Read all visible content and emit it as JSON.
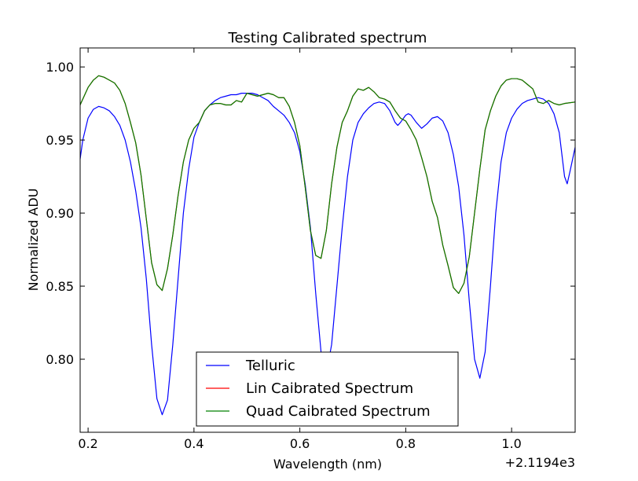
{
  "chart_data": {
    "type": "line",
    "title": "Testing Calibrated spectrum",
    "xlabel": "Wavelength (nm)",
    "ylabel": "Normalized ADU",
    "x_offset_text": "+2.1194e3",
    "xlim": [
      0.185,
      1.12
    ],
    "ylim": [
      0.75,
      1.013
    ],
    "xticks": [
      0.2,
      0.4,
      0.6,
      0.8,
      1.0
    ],
    "xtick_labels": [
      "0.2",
      "0.4",
      "0.6",
      "0.8",
      "1.0"
    ],
    "yticks": [
      0.8,
      0.85,
      0.9,
      0.95,
      1.0
    ],
    "ytick_labels": [
      "0.80",
      "0.85",
      "0.90",
      "0.95",
      "1.00"
    ],
    "grid": false,
    "legend_position": "lower-center",
    "series": [
      {
        "name": "Telluric",
        "color": "#0000ff",
        "points": [
          [
            0.185,
            0.937
          ],
          [
            0.19,
            0.95
          ],
          [
            0.2,
            0.965
          ],
          [
            0.21,
            0.971
          ],
          [
            0.22,
            0.973
          ],
          [
            0.23,
            0.972
          ],
          [
            0.24,
            0.97
          ],
          [
            0.25,
            0.966
          ],
          [
            0.26,
            0.96
          ],
          [
            0.27,
            0.95
          ],
          [
            0.28,
            0.935
          ],
          [
            0.29,
            0.915
          ],
          [
            0.3,
            0.89
          ],
          [
            0.31,
            0.855
          ],
          [
            0.32,
            0.81
          ],
          [
            0.33,
            0.773
          ],
          [
            0.34,
            0.762
          ],
          [
            0.35,
            0.772
          ],
          [
            0.36,
            0.81
          ],
          [
            0.37,
            0.855
          ],
          [
            0.38,
            0.9
          ],
          [
            0.39,
            0.93
          ],
          [
            0.4,
            0.952
          ],
          [
            0.41,
            0.962
          ],
          [
            0.42,
            0.97
          ],
          [
            0.43,
            0.974
          ],
          [
            0.44,
            0.977
          ],
          [
            0.45,
            0.979
          ],
          [
            0.46,
            0.98
          ],
          [
            0.47,
            0.981
          ],
          [
            0.48,
            0.981
          ],
          [
            0.49,
            0.982
          ],
          [
            0.5,
            0.982
          ],
          [
            0.51,
            0.982
          ],
          [
            0.52,
            0.981
          ],
          [
            0.53,
            0.979
          ],
          [
            0.54,
            0.977
          ],
          [
            0.55,
            0.973
          ],
          [
            0.56,
            0.97
          ],
          [
            0.57,
            0.967
          ],
          [
            0.58,
            0.962
          ],
          [
            0.59,
            0.955
          ],
          [
            0.6,
            0.942
          ],
          [
            0.61,
            0.92
          ],
          [
            0.62,
            0.89
          ],
          [
            0.63,
            0.845
          ],
          [
            0.64,
            0.805
          ],
          [
            0.65,
            0.79
          ],
          [
            0.66,
            0.81
          ],
          [
            0.67,
            0.85
          ],
          [
            0.68,
            0.89
          ],
          [
            0.69,
            0.925
          ],
          [
            0.7,
            0.95
          ],
          [
            0.71,
            0.962
          ],
          [
            0.72,
            0.968
          ],
          [
            0.73,
            0.972
          ],
          [
            0.74,
            0.975
          ],
          [
            0.75,
            0.976
          ],
          [
            0.76,
            0.975
          ],
          [
            0.77,
            0.97
          ],
          [
            0.78,
            0.962
          ],
          [
            0.785,
            0.96
          ],
          [
            0.79,
            0.962
          ],
          [
            0.8,
            0.967
          ],
          [
            0.805,
            0.968
          ],
          [
            0.81,
            0.967
          ],
          [
            0.82,
            0.962
          ],
          [
            0.83,
            0.958
          ],
          [
            0.84,
            0.961
          ],
          [
            0.85,
            0.965
          ],
          [
            0.86,
            0.966
          ],
          [
            0.87,
            0.963
          ],
          [
            0.88,
            0.955
          ],
          [
            0.89,
            0.94
          ],
          [
            0.9,
            0.918
          ],
          [
            0.91,
            0.885
          ],
          [
            0.92,
            0.84
          ],
          [
            0.93,
            0.8
          ],
          [
            0.94,
            0.787
          ],
          [
            0.95,
            0.805
          ],
          [
            0.96,
            0.85
          ],
          [
            0.97,
            0.9
          ],
          [
            0.98,
            0.935
          ],
          [
            0.99,
            0.955
          ],
          [
            1.0,
            0.965
          ],
          [
            1.01,
            0.971
          ],
          [
            1.02,
            0.975
          ],
          [
            1.03,
            0.977
          ],
          [
            1.04,
            0.978
          ],
          [
            1.05,
            0.979
          ],
          [
            1.06,
            0.978
          ],
          [
            1.07,
            0.975
          ],
          [
            1.08,
            0.968
          ],
          [
            1.09,
            0.955
          ],
          [
            1.1,
            0.925
          ],
          [
            1.105,
            0.92
          ],
          [
            1.11,
            0.928
          ],
          [
            1.12,
            0.945
          ]
        ]
      },
      {
        "name": "Lin Caibrated Spectrum",
        "color": "#ff0000",
        "points": [
          [
            0.185,
            0.974
          ],
          [
            0.2,
            0.986
          ],
          [
            0.21,
            0.991
          ],
          [
            0.22,
            0.994
          ],
          [
            0.23,
            0.993
          ],
          [
            0.24,
            0.991
          ],
          [
            0.25,
            0.989
          ],
          [
            0.26,
            0.984
          ],
          [
            0.27,
            0.975
          ],
          [
            0.28,
            0.962
          ],
          [
            0.29,
            0.948
          ],
          [
            0.3,
            0.926
          ],
          [
            0.31,
            0.896
          ],
          [
            0.32,
            0.866
          ],
          [
            0.33,
            0.851
          ],
          [
            0.34,
            0.847
          ],
          [
            0.35,
            0.862
          ],
          [
            0.36,
            0.885
          ],
          [
            0.37,
            0.912
          ],
          [
            0.38,
            0.935
          ],
          [
            0.39,
            0.95
          ],
          [
            0.4,
            0.958
          ],
          [
            0.41,
            0.962
          ],
          [
            0.42,
            0.97
          ],
          [
            0.43,
            0.974
          ],
          [
            0.44,
            0.975
          ],
          [
            0.45,
            0.975
          ],
          [
            0.46,
            0.974
          ],
          [
            0.47,
            0.974
          ],
          [
            0.48,
            0.977
          ],
          [
            0.49,
            0.976
          ],
          [
            0.5,
            0.982
          ],
          [
            0.51,
            0.981
          ],
          [
            0.52,
            0.98
          ],
          [
            0.53,
            0.981
          ],
          [
            0.54,
            0.982
          ],
          [
            0.55,
            0.981
          ],
          [
            0.56,
            0.979
          ],
          [
            0.57,
            0.979
          ],
          [
            0.58,
            0.973
          ],
          [
            0.59,
            0.962
          ],
          [
            0.6,
            0.946
          ],
          [
            0.61,
            0.918
          ],
          [
            0.62,
            0.888
          ],
          [
            0.63,
            0.871
          ],
          [
            0.64,
            0.869
          ],
          [
            0.65,
            0.888
          ],
          [
            0.66,
            0.92
          ],
          [
            0.67,
            0.945
          ],
          [
            0.68,
            0.962
          ],
          [
            0.69,
            0.97
          ],
          [
            0.7,
            0.98
          ],
          [
            0.71,
            0.985
          ],
          [
            0.72,
            0.984
          ],
          [
            0.73,
            0.986
          ],
          [
            0.74,
            0.983
          ],
          [
            0.75,
            0.979
          ],
          [
            0.76,
            0.978
          ],
          [
            0.77,
            0.976
          ],
          [
            0.78,
            0.97
          ],
          [
            0.79,
            0.965
          ],
          [
            0.8,
            0.963
          ],
          [
            0.81,
            0.957
          ],
          [
            0.82,
            0.95
          ],
          [
            0.83,
            0.938
          ],
          [
            0.84,
            0.925
          ],
          [
            0.85,
            0.908
          ],
          [
            0.86,
            0.897
          ],
          [
            0.87,
            0.878
          ],
          [
            0.88,
            0.864
          ],
          [
            0.89,
            0.849
          ],
          [
            0.9,
            0.845
          ],
          [
            0.91,
            0.852
          ],
          [
            0.92,
            0.87
          ],
          [
            0.93,
            0.9
          ],
          [
            0.94,
            0.93
          ],
          [
            0.95,
            0.957
          ],
          [
            0.96,
            0.97
          ],
          [
            0.97,
            0.98
          ],
          [
            0.98,
            0.987
          ],
          [
            0.99,
            0.991
          ],
          [
            1.0,
            0.992
          ],
          [
            1.01,
            0.992
          ],
          [
            1.02,
            0.991
          ],
          [
            1.03,
            0.988
          ],
          [
            1.04,
            0.985
          ],
          [
            1.05,
            0.976
          ],
          [
            1.06,
            0.975
          ],
          [
            1.07,
            0.977
          ],
          [
            1.08,
            0.975
          ],
          [
            1.09,
            0.974
          ],
          [
            1.1,
            0.975
          ],
          [
            1.12,
            0.976
          ]
        ]
      },
      {
        "name": "Quad Caibrated Spectrum",
        "color": "#008000",
        "points": [
          [
            0.185,
            0.974
          ],
          [
            0.2,
            0.986
          ],
          [
            0.21,
            0.991
          ],
          [
            0.22,
            0.994
          ],
          [
            0.23,
            0.993
          ],
          [
            0.24,
            0.991
          ],
          [
            0.25,
            0.989
          ],
          [
            0.26,
            0.984
          ],
          [
            0.27,
            0.975
          ],
          [
            0.28,
            0.962
          ],
          [
            0.29,
            0.948
          ],
          [
            0.3,
            0.926
          ],
          [
            0.31,
            0.896
          ],
          [
            0.32,
            0.866
          ],
          [
            0.33,
            0.851
          ],
          [
            0.34,
            0.847
          ],
          [
            0.35,
            0.862
          ],
          [
            0.36,
            0.885
          ],
          [
            0.37,
            0.912
          ],
          [
            0.38,
            0.935
          ],
          [
            0.39,
            0.95
          ],
          [
            0.4,
            0.958
          ],
          [
            0.41,
            0.962
          ],
          [
            0.42,
            0.97
          ],
          [
            0.43,
            0.974
          ],
          [
            0.44,
            0.975
          ],
          [
            0.45,
            0.975
          ],
          [
            0.46,
            0.974
          ],
          [
            0.47,
            0.974
          ],
          [
            0.48,
            0.977
          ],
          [
            0.49,
            0.976
          ],
          [
            0.5,
            0.982
          ],
          [
            0.51,
            0.981
          ],
          [
            0.52,
            0.98
          ],
          [
            0.53,
            0.981
          ],
          [
            0.54,
            0.982
          ],
          [
            0.55,
            0.981
          ],
          [
            0.56,
            0.979
          ],
          [
            0.57,
            0.979
          ],
          [
            0.58,
            0.973
          ],
          [
            0.59,
            0.962
          ],
          [
            0.6,
            0.946
          ],
          [
            0.61,
            0.918
          ],
          [
            0.62,
            0.888
          ],
          [
            0.63,
            0.871
          ],
          [
            0.64,
            0.869
          ],
          [
            0.65,
            0.888
          ],
          [
            0.66,
            0.92
          ],
          [
            0.67,
            0.945
          ],
          [
            0.68,
            0.962
          ],
          [
            0.69,
            0.97
          ],
          [
            0.7,
            0.98
          ],
          [
            0.71,
            0.985
          ],
          [
            0.72,
            0.984
          ],
          [
            0.73,
            0.986
          ],
          [
            0.74,
            0.983
          ],
          [
            0.75,
            0.979
          ],
          [
            0.76,
            0.978
          ],
          [
            0.77,
            0.976
          ],
          [
            0.78,
            0.97
          ],
          [
            0.79,
            0.965
          ],
          [
            0.8,
            0.963
          ],
          [
            0.81,
            0.957
          ],
          [
            0.82,
            0.95
          ],
          [
            0.83,
            0.938
          ],
          [
            0.84,
            0.925
          ],
          [
            0.85,
            0.908
          ],
          [
            0.86,
            0.897
          ],
          [
            0.87,
            0.878
          ],
          [
            0.88,
            0.864
          ],
          [
            0.89,
            0.849
          ],
          [
            0.9,
            0.845
          ],
          [
            0.91,
            0.852
          ],
          [
            0.92,
            0.87
          ],
          [
            0.93,
            0.9
          ],
          [
            0.94,
            0.93
          ],
          [
            0.95,
            0.957
          ],
          [
            0.96,
            0.97
          ],
          [
            0.97,
            0.98
          ],
          [
            0.98,
            0.987
          ],
          [
            0.99,
            0.991
          ],
          [
            1.0,
            0.992
          ],
          [
            1.01,
            0.992
          ],
          [
            1.02,
            0.991
          ],
          [
            1.03,
            0.988
          ],
          [
            1.04,
            0.985
          ],
          [
            1.05,
            0.976
          ],
          [
            1.06,
            0.975
          ],
          [
            1.07,
            0.977
          ],
          [
            1.08,
            0.975
          ],
          [
            1.09,
            0.974
          ],
          [
            1.1,
            0.975
          ],
          [
            1.12,
            0.976
          ]
        ]
      }
    ]
  }
}
